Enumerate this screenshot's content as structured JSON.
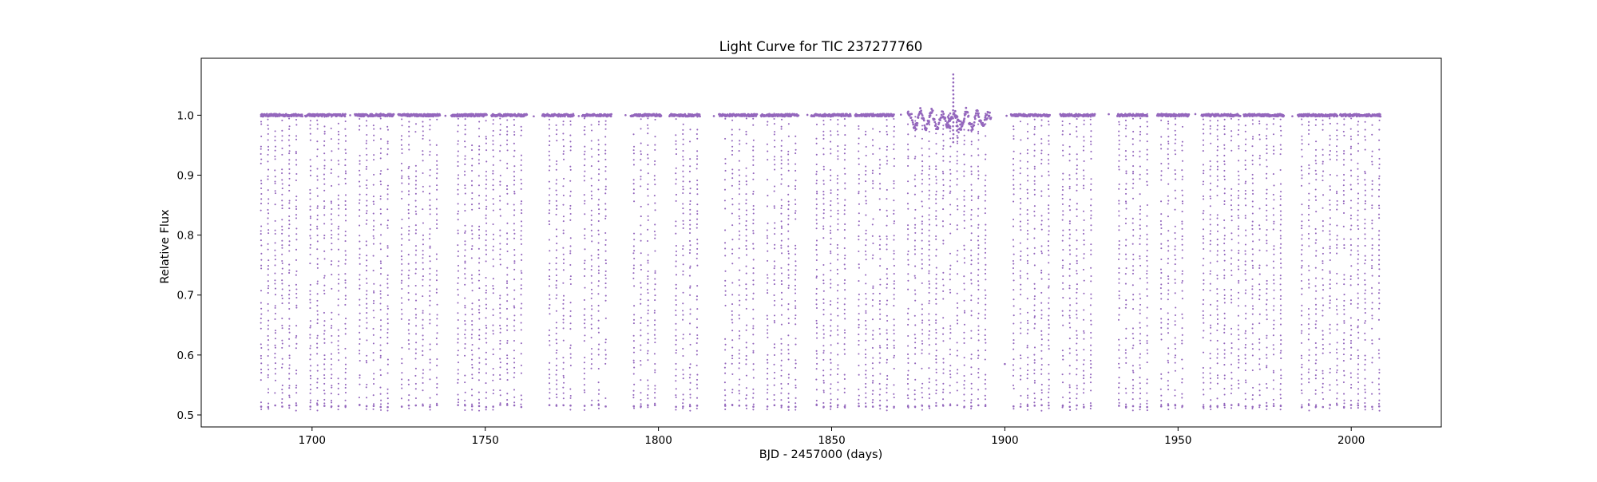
{
  "chart_data": {
    "type": "scatter",
    "title": "Light Curve for TIC 237277760",
    "xlabel": "BJD - 2457000 (days)",
    "ylabel": "Relative Flux",
    "xlim": [
      1668,
      2026
    ],
    "ylim": [
      0.48,
      1.095
    ],
    "xticks": [
      1700,
      1750,
      1800,
      1850,
      1900,
      1950,
      2000
    ],
    "yticks": [
      0.5,
      0.6,
      0.7,
      0.8,
      0.9,
      1.0
    ],
    "ytick_labels": [
      "0.5",
      "0.6",
      "0.7",
      "0.8",
      "0.9",
      "1.0"
    ],
    "grid": false,
    "legend": "none",
    "colors": {
      "series": "#9467bd",
      "axes": "#000000",
      "background": "#ffffff"
    },
    "series": [
      {
        "marker": "point",
        "baseline_flux": 1.0,
        "min_flux": 0.51,
        "eclipse_period_days": 2.03,
        "segments": [
          [
            1685.3,
            1697.2
          ],
          [
            1698.2,
            1709.7
          ],
          [
            1712.4,
            1723.6
          ],
          [
            1724.9,
            1737.0
          ],
          [
            1740.2,
            1750.4
          ],
          [
            1751.8,
            1762.0
          ],
          [
            1766.5,
            1775.5
          ],
          [
            1778.0,
            1786.5
          ],
          [
            1792.0,
            1800.8
          ],
          [
            1803.2,
            1812.0
          ],
          [
            1817.5,
            1828.5
          ],
          [
            1829.6,
            1840.5
          ],
          [
            1844.1,
            1855.5
          ],
          [
            1856.8,
            1868.0
          ],
          [
            1872.0,
            1884.8
          ],
          [
            1885.2,
            1896.0
          ],
          [
            1901.8,
            1913.0
          ],
          [
            1916.0,
            1926.0
          ],
          [
            1932.5,
            1941.2
          ],
          [
            1944.0,
            1953.2
          ],
          [
            1956.8,
            1968.0
          ],
          [
            1969.0,
            1980.6
          ],
          [
            1984.6,
            1996.0
          ],
          [
            1996.8,
            2008.5
          ]
        ],
        "noisy_segment_days": [
          1872.0,
          1896.0
        ],
        "noisy_spike": {
          "x": 1885.1,
          "y_max": 1.068,
          "y_min": 0.955
        }
      }
    ]
  }
}
